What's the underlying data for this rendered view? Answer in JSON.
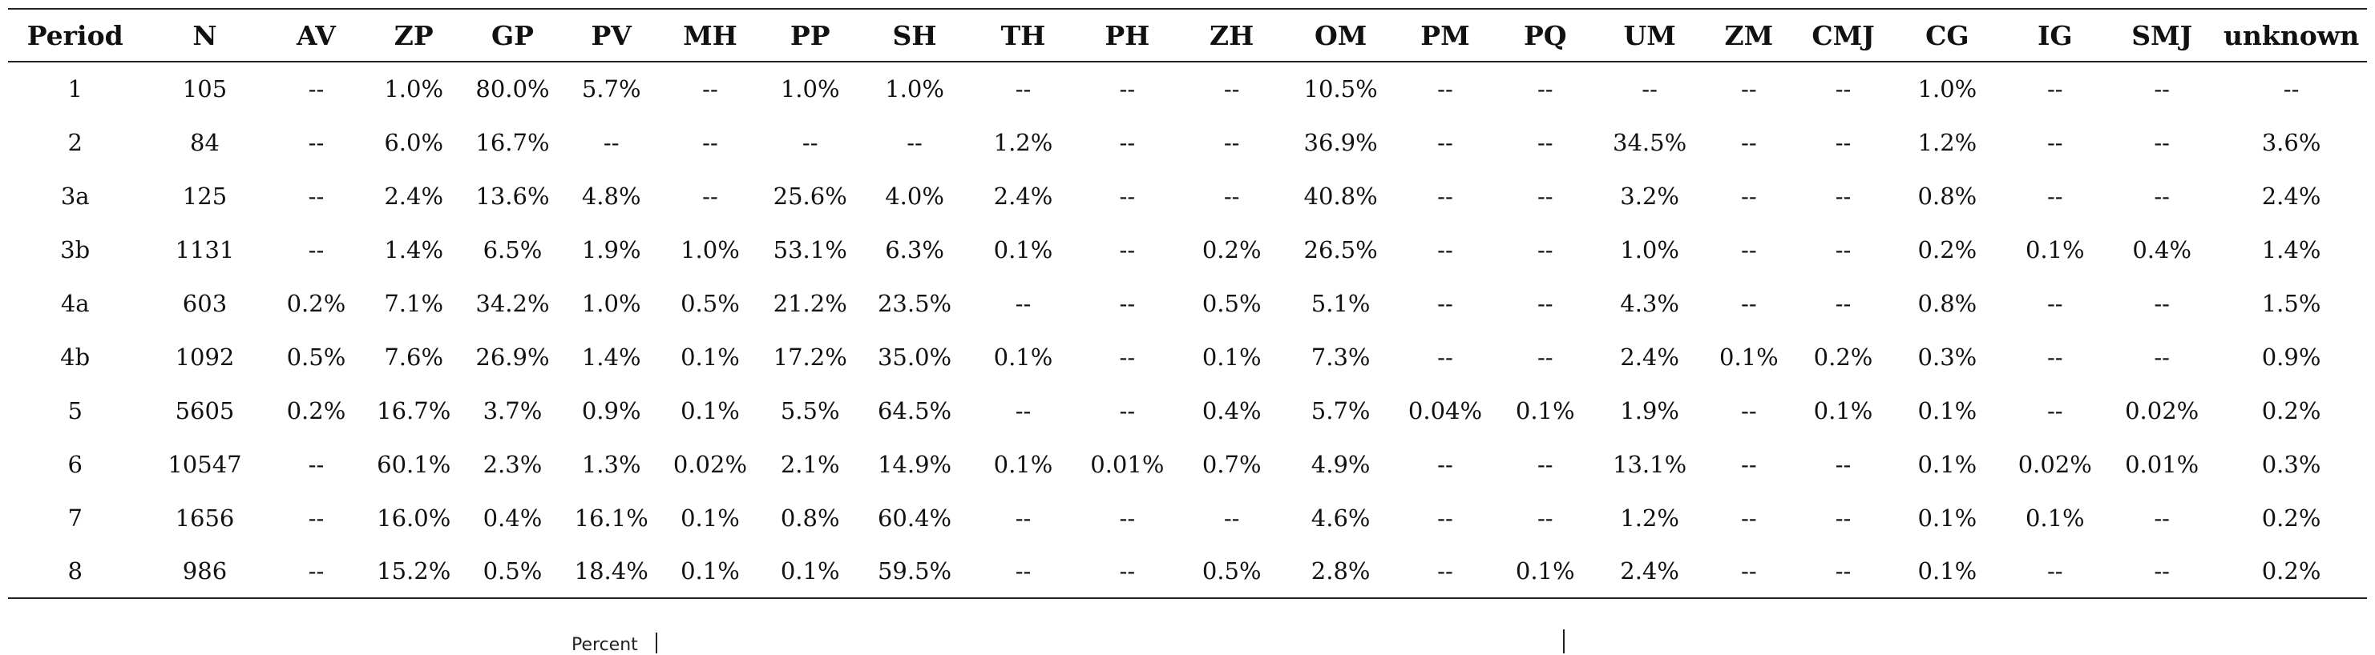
{
  "table": {
    "headers": [
      "Period",
      "N",
      "AV",
      "ZP",
      "GP",
      "PV",
      "MH",
      "PP",
      "SH",
      "TH",
      "PH",
      "ZH",
      "OM",
      "PM",
      "PQ",
      "UM",
      "ZM",
      "CMJ",
      "CG",
      "IG",
      "SMJ",
      "unknown"
    ],
    "rows": [
      [
        "1",
        "105",
        "--",
        "1.0%",
        "80.0%",
        "5.7%",
        "--",
        "1.0%",
        "1.0%",
        "--",
        "--",
        "--",
        "10.5%",
        "--",
        "--",
        "--",
        "--",
        "--",
        "1.0%",
        "--",
        "--",
        "--"
      ],
      [
        "2",
        "84",
        "--",
        "6.0%",
        "16.7%",
        "--",
        "--",
        "--",
        "--",
        "1.2%",
        "--",
        "--",
        "36.9%",
        "--",
        "--",
        "34.5%",
        "--",
        "--",
        "1.2%",
        "--",
        "--",
        "3.6%"
      ],
      [
        "3a",
        "125",
        "--",
        "2.4%",
        "13.6%",
        "4.8%",
        "--",
        "25.6%",
        "4.0%",
        "2.4%",
        "--",
        "--",
        "40.8%",
        "--",
        "--",
        "3.2%",
        "--",
        "--",
        "0.8%",
        "--",
        "--",
        "2.4%"
      ],
      [
        "3b",
        "1131",
        "--",
        "1.4%",
        "6.5%",
        "1.9%",
        "1.0%",
        "53.1%",
        "6.3%",
        "0.1%",
        "--",
        "0.2%",
        "26.5%",
        "--",
        "--",
        "1.0%",
        "--",
        "--",
        "0.2%",
        "0.1%",
        "0.4%",
        "1.4%"
      ],
      [
        "4a",
        "603",
        "0.2%",
        "7.1%",
        "34.2%",
        "1.0%",
        "0.5%",
        "21.2%",
        "23.5%",
        "--",
        "--",
        "0.5%",
        "5.1%",
        "--",
        "--",
        "4.3%",
        "--",
        "--",
        "0.8%",
        "--",
        "--",
        "1.5%"
      ],
      [
        "4b",
        "1092",
        "0.5%",
        "7.6%",
        "26.9%",
        "1.4%",
        "0.1%",
        "17.2%",
        "35.0%",
        "0.1%",
        "--",
        "0.1%",
        "7.3%",
        "--",
        "--",
        "2.4%",
        "0.1%",
        "0.2%",
        "0.3%",
        "--",
        "--",
        "0.9%"
      ],
      [
        "5",
        "5605",
        "0.2%",
        "16.7%",
        "3.7%",
        "0.9%",
        "0.1%",
        "5.5%",
        "64.5%",
        "--",
        "--",
        "0.4%",
        "5.7%",
        "0.04%",
        "0.1%",
        "1.9%",
        "--",
        "0.1%",
        "0.1%",
        "--",
        "0.02%",
        "0.2%"
      ],
      [
        "6",
        "10547",
        "--",
        "60.1%",
        "2.3%",
        "1.3%",
        "0.02%",
        "2.1%",
        "14.9%",
        "0.1%",
        "0.01%",
        "0.7%",
        "4.9%",
        "--",
        "--",
        "13.1%",
        "--",
        "--",
        "0.1%",
        "0.02%",
        "0.01%",
        "0.3%"
      ],
      [
        "7",
        "1656",
        "--",
        "16.0%",
        "0.4%",
        "16.1%",
        "0.1%",
        "0.8%",
        "60.4%",
        "--",
        "--",
        "--",
        "4.6%",
        "--",
        "--",
        "1.2%",
        "--",
        "--",
        "0.1%",
        "0.1%",
        "--",
        "0.2%"
      ],
      [
        "8",
        "986",
        "--",
        "15.2%",
        "0.5%",
        "18.4%",
        "0.1%",
        "0.1%",
        "59.5%",
        "--",
        "--",
        "0.5%",
        "2.8%",
        "--",
        "0.1%",
        "2.4%",
        "--",
        "--",
        "0.1%",
        "--",
        "--",
        "0.2%"
      ]
    ]
  },
  "fragment": {
    "label": "Percent"
  }
}
